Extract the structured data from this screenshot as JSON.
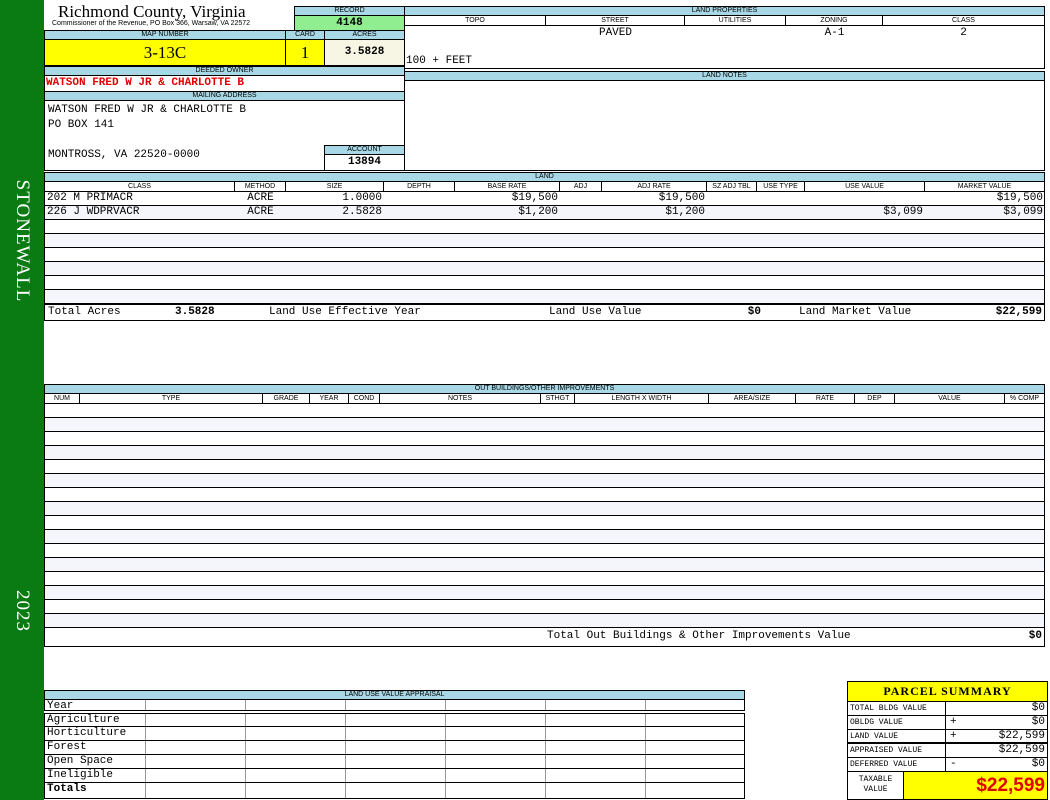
{
  "sidebar": {
    "district": "STONEWALL",
    "year": "2023",
    "color": "#0a7a12"
  },
  "header": {
    "county": "Richmond County, Virginia",
    "office": "Commissioner of the Revenue, PO Box 366, Warsaw, VA 22572",
    "record_label": "RECORD",
    "record": "4148",
    "map_label": "MAP NUMBER",
    "map_number": "3-13C",
    "card_label": "CARD",
    "card": "1",
    "acres_label": "ACRES",
    "acres": "3.5828"
  },
  "owner": {
    "label": "DEEDED OWNER",
    "name": "WATSON FRED W JR & CHARLOTTE B"
  },
  "mailing": {
    "label": "MAILING ADDRESS",
    "line1": "WATSON FRED W JR & CHARLOTTE B",
    "line2": "PO BOX 141",
    "line3": "MONTROSS, VA 22520-0000",
    "account_label": "ACCOUNT",
    "account": "13894"
  },
  "land_properties": {
    "label": "LAND PROPERTIES",
    "columns": [
      "TOPO",
      "STREET",
      "UTILITIES",
      "ZONING",
      "CLASS"
    ],
    "street": "PAVED",
    "zoning": "A-1",
    "class": "2",
    "frontage": "100 + FEET"
  },
  "land_notes": {
    "label": "LAND NOTES"
  },
  "land": {
    "label": "LAND",
    "columns": [
      "CLASS",
      "METHOD",
      "SIZE",
      "DEPTH",
      "BASE RATE",
      "ADJ",
      "ADJ RATE",
      "SZ ADJ TBL",
      "USE TYPE",
      "USE VALUE",
      "MARKET VALUE"
    ],
    "rows": [
      [
        "202 M PRIMACR",
        "ACRE",
        "1.0000",
        "",
        "$19,500",
        "",
        "$19,500",
        "",
        "",
        "",
        "$19,500"
      ],
      [
        "226 J WDPRVACR",
        "ACRE",
        "2.5828",
        "",
        "$1,200",
        "",
        "$1,200",
        "",
        "",
        "$3,099",
        "$3,099"
      ]
    ],
    "totals": {
      "acres_label": "Total Acres",
      "acres": "3.5828",
      "eff_year_label": "Land Use Effective Year",
      "use_value_label": "Land Use Value",
      "use_value": "$0",
      "market_label": "Land Market Value",
      "market": "$22,599"
    }
  },
  "outbuildings": {
    "label": "OUT BUILDINGS/OTHER IMPROVEMENTS",
    "columns": [
      "NUM",
      "TYPE",
      "GRADE",
      "YEAR",
      "COND",
      "NOTES",
      "STHGT",
      "LENGTH X WIDTH",
      "AREA/SIZE",
      "RATE",
      "DEP",
      "VALUE",
      "% COMP"
    ],
    "total_label": "Total Out Buildings & Other Improvements Value",
    "total": "$0"
  },
  "land_use": {
    "label": "LAND USE VALUE APPRAISAL",
    "year_label": "Year",
    "rows": [
      "Agriculture",
      "Horticulture",
      "Forest",
      "Open Space",
      "Ineligible"
    ],
    "totals_label": "Totals"
  },
  "summary": {
    "title": "PARCEL SUMMARY",
    "rows": [
      {
        "label": "TOTAL BLDG VALUE",
        "op": "",
        "value": "$0"
      },
      {
        "label": "OBLDG VALUE",
        "op": "+",
        "value": "$0"
      },
      {
        "label": "LAND VALUE",
        "op": "+",
        "value": "$22,599"
      },
      {
        "label": "APPRAISED VALUE",
        "op": "",
        "value": "$22,599"
      },
      {
        "label": "DEFERRED VALUE",
        "op": "-",
        "value": "$0"
      }
    ],
    "taxable_label": "TAXABLE VALUE",
    "taxable": "$22,599"
  },
  "colors": {
    "header_blue": "#a8d8e6",
    "yellow": "#ffff00",
    "green": "#90ee90",
    "red": "#e00000"
  }
}
